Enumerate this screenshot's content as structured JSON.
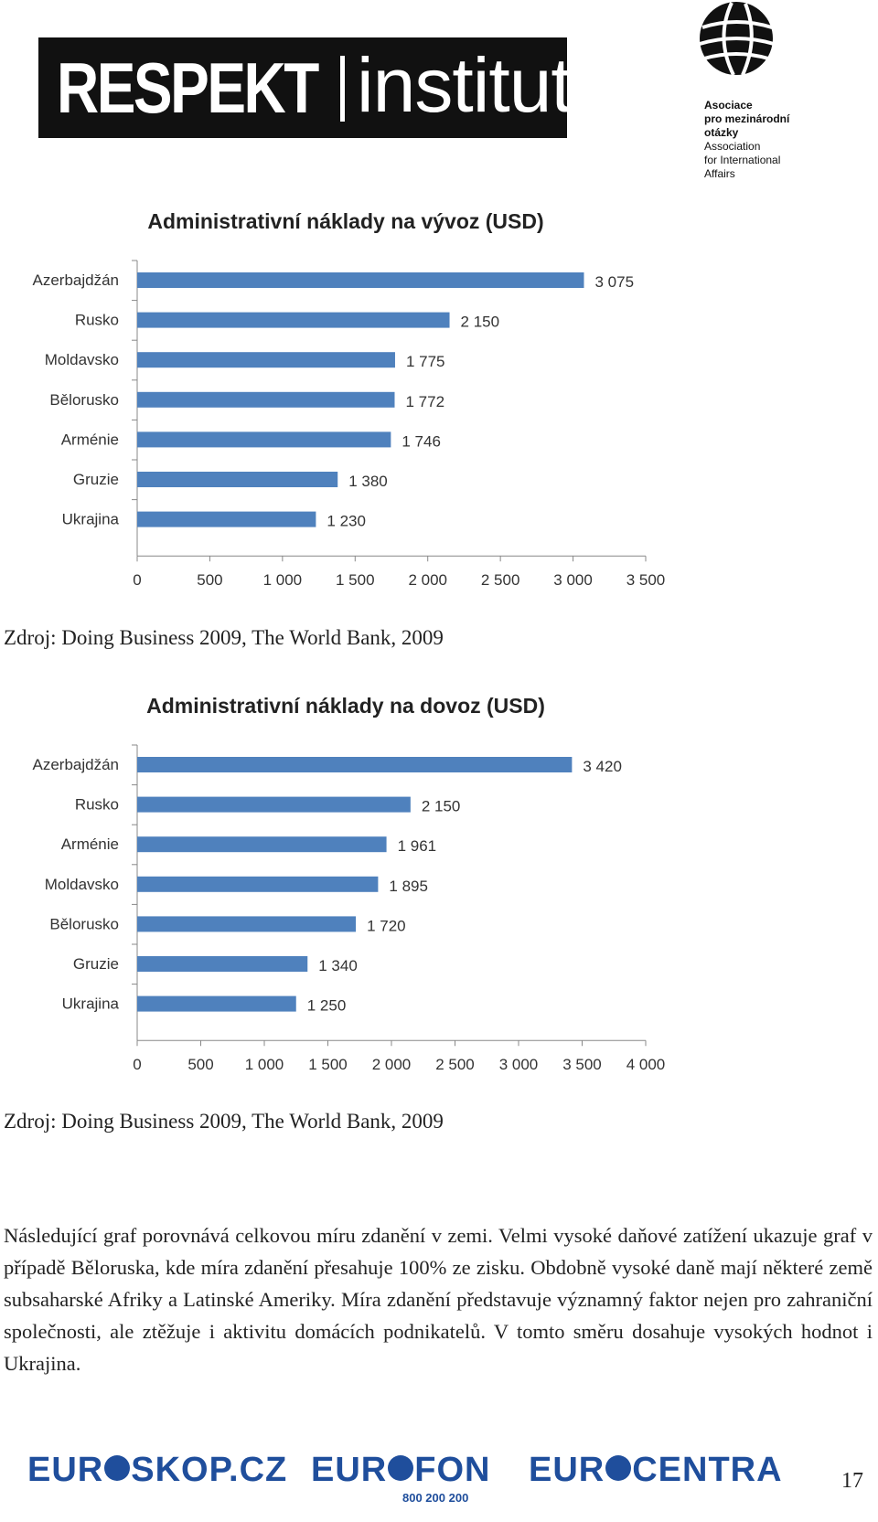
{
  "header": {
    "respekt_bold": "RESPEKT",
    "respekt_light": "institut",
    "amo_lines": [
      "Asociace",
      "pro mezinárodní",
      "otázky",
      "Association",
      "for International",
      "Affairs"
    ]
  },
  "chart_data": [
    {
      "type": "bar",
      "title": "Administrativní náklady na vývoz (USD)",
      "categories": [
        "Azerbajdžán",
        "Rusko",
        "Moldavsko",
        "Bělorusko",
        "Arménie",
        "Gruzie",
        "Ukrajina"
      ],
      "values": [
        3075,
        2150,
        1775,
        1772,
        1746,
        1380,
        1230
      ],
      "value_labels": [
        "3 075",
        "2 150",
        "1 775",
        "1 772",
        "1 746",
        "1 380",
        "1 230"
      ],
      "xlim": [
        0,
        3500
      ],
      "xticks": [
        0,
        500,
        1000,
        1500,
        2000,
        2500,
        3000,
        3500
      ],
      "xtick_labels": [
        "0",
        "500",
        "1 000",
        "1 500",
        "2 000",
        "2 500",
        "3 000",
        "3 500"
      ],
      "bar_color": "#4f81bd",
      "orientation": "horizontal"
    },
    {
      "type": "bar",
      "title": "Administrativní náklady na dovoz (USD)",
      "categories": [
        "Azerbajdžán",
        "Rusko",
        "Arménie",
        "Moldavsko",
        "Bělorusko",
        "Gruzie",
        "Ukrajina"
      ],
      "values": [
        3420,
        2150,
        1961,
        1895,
        1720,
        1340,
        1250
      ],
      "value_labels": [
        "3 420",
        "2 150",
        "1 961",
        "1 895",
        "1 720",
        "1 340",
        "1 250"
      ],
      "xlim": [
        0,
        4000
      ],
      "xticks": [
        0,
        500,
        1000,
        1500,
        2000,
        2500,
        3000,
        3500,
        4000
      ],
      "xtick_labels": [
        "0",
        "500",
        "1 000",
        "1 500",
        "2 000",
        "2 500",
        "3 000",
        "3 500",
        "4 000"
      ],
      "bar_color": "#4f81bd",
      "orientation": "horizontal"
    }
  ],
  "source1": "Zdroj: Doing Business 2009, The World Bank, 2009",
  "source2": "Zdroj: Doing Business 2009, The World Bank, 2009",
  "paragraph": "Následující graf porovnává celkovou míru zdanění v zemi. Velmi vysoké daňové zatížení ukazuje graf v případě Běloruska, kde míra zdanění přesahuje 100% ze zisku. Obdobně vysoké daně mají některé země subsaharské Afriky a Latinské Ameriky. Míra zdanění představuje významný faktor nejen pro zahraniční společnosti, ale ztěžuje i aktivitu domácích podnikatelů. V tomto směru dosahuje vysokých hodnot i Ukrajina.",
  "footer": {
    "logo1": [
      "EUR",
      "SKOP.CZ"
    ],
    "logo2": [
      "EUR",
      "FON"
    ],
    "logo2_sub": "800 200 200",
    "logo3": [
      "EUR",
      "CENTRA"
    ],
    "page_number": "17"
  }
}
